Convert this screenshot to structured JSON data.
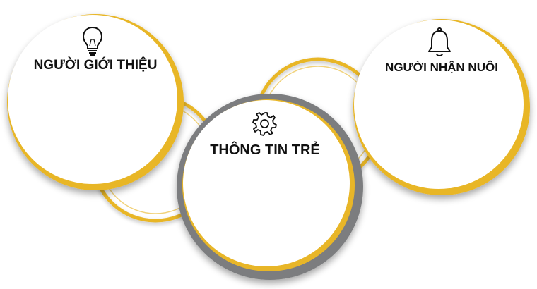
{
  "diagram": {
    "nodes": [
      {
        "id": "referrer",
        "label": "NGƯỜI GIỚI THIỆU",
        "icon": "lightbulb-icon"
      },
      {
        "id": "child-info",
        "label": "THÔNG TIN TRẺ",
        "icon": "gear-icon"
      },
      {
        "id": "adopter",
        "label": "NGƯỜI NHẬN NUÔI",
        "icon": "bell-icon"
      }
    ]
  },
  "colors": {
    "gold": "#E8B628",
    "gold_dark": "#D9A31A",
    "ring_gray": "#7C7D7F",
    "ring_gray_dark": "#5F6062",
    "circle_fill": "#FFFFFF",
    "text": "#111111"
  }
}
